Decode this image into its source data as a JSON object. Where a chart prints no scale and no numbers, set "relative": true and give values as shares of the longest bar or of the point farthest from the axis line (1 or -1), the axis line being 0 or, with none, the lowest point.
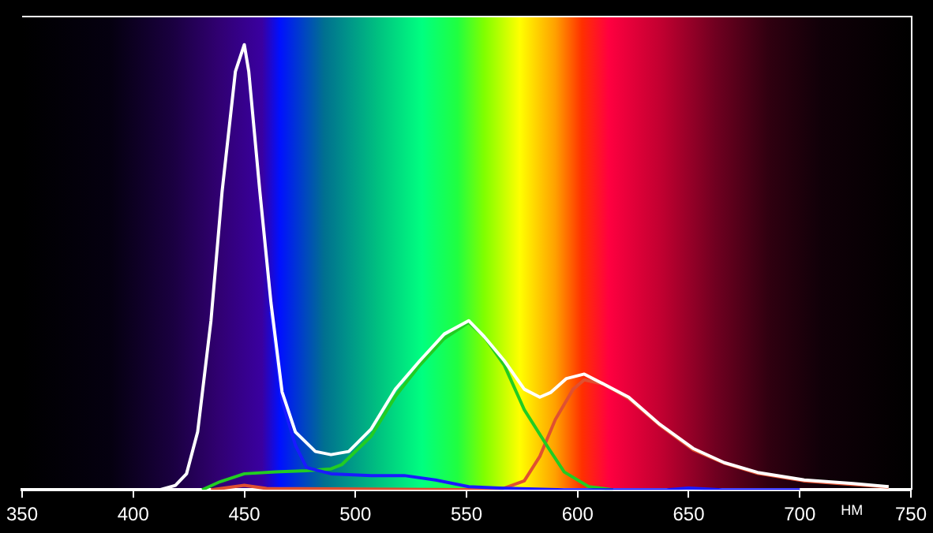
{
  "chart_data": {
    "type": "line",
    "relative": true,
    "xlabel": "НМ",
    "xlim": [
      350,
      750
    ],
    "xticks": [
      350,
      400,
      450,
      500,
      550,
      600,
      650,
      700,
      750
    ],
    "grid": false,
    "legend": false,
    "marker": "none",
    "line_style": "solid",
    "series": [
      {
        "color": "#e05030",
        "x": [
          435,
          450,
          460,
          565,
          576,
          583,
          590,
          598,
          603,
          612,
          623,
          637,
          652,
          666,
          681,
          702,
          724,
          740
        ],
        "values": [
          0,
          0.01,
          0.003,
          0,
          0.02,
          0.075,
          0.158,
          0.226,
          0.247,
          0.237,
          0.205,
          0.145,
          0.09,
          0.06,
          0.037,
          0.02,
          0.012,
          0.006
        ]
      },
      {
        "color": "#22cc22",
        "x": [
          431,
          439,
          450,
          464,
          478,
          489,
          494,
          507,
          518,
          529,
          540,
          551,
          558,
          567,
          576,
          587,
          594,
          605,
          616
        ],
        "values": [
          0,
          0.018,
          0.036,
          0.04,
          0.043,
          0.047,
          0.057,
          0.12,
          0.21,
          0.28,
          0.34,
          0.376,
          0.344,
          0.28,
          0.18,
          0.093,
          0.04,
          0.007,
          0
        ]
      },
      {
        "color": "#1a1aff",
        "x": [
          462,
          467,
          473,
          478,
          489,
          507,
          522,
          536,
          551,
          565,
          594,
          640,
          650,
          665,
          700
        ],
        "values": [
          0.4,
          0.2,
          0.1,
          0.05,
          0.036,
          0.032,
          0.032,
          0.022,
          0.007,
          0.004,
          0,
          0,
          0.004,
          0,
          0
        ]
      },
      {
        "color": "#ffffff",
        "x": [
          412,
          419,
          424,
          429,
          435,
          440,
          446,
          450,
          452,
          457,
          462,
          467,
          473,
          482,
          489,
          497,
          507,
          518,
          529,
          540,
          551,
          558,
          567,
          576,
          583,
          588,
          595,
          603,
          612,
          623,
          637,
          652,
          666,
          681,
          702,
          724,
          740
        ],
        "values": [
          0,
          0.01,
          0.036,
          0.13,
          0.38,
          0.67,
          0.94,
          1,
          0.94,
          0.67,
          0.42,
          0.22,
          0.13,
          0.086,
          0.079,
          0.086,
          0.136,
          0.226,
          0.29,
          0.35,
          0.38,
          0.344,
          0.29,
          0.226,
          0.208,
          0.219,
          0.25,
          0.26,
          0.237,
          0.208,
          0.147,
          0.093,
          0.061,
          0.039,
          0.022,
          0.014,
          0.007
        ]
      }
    ]
  }
}
